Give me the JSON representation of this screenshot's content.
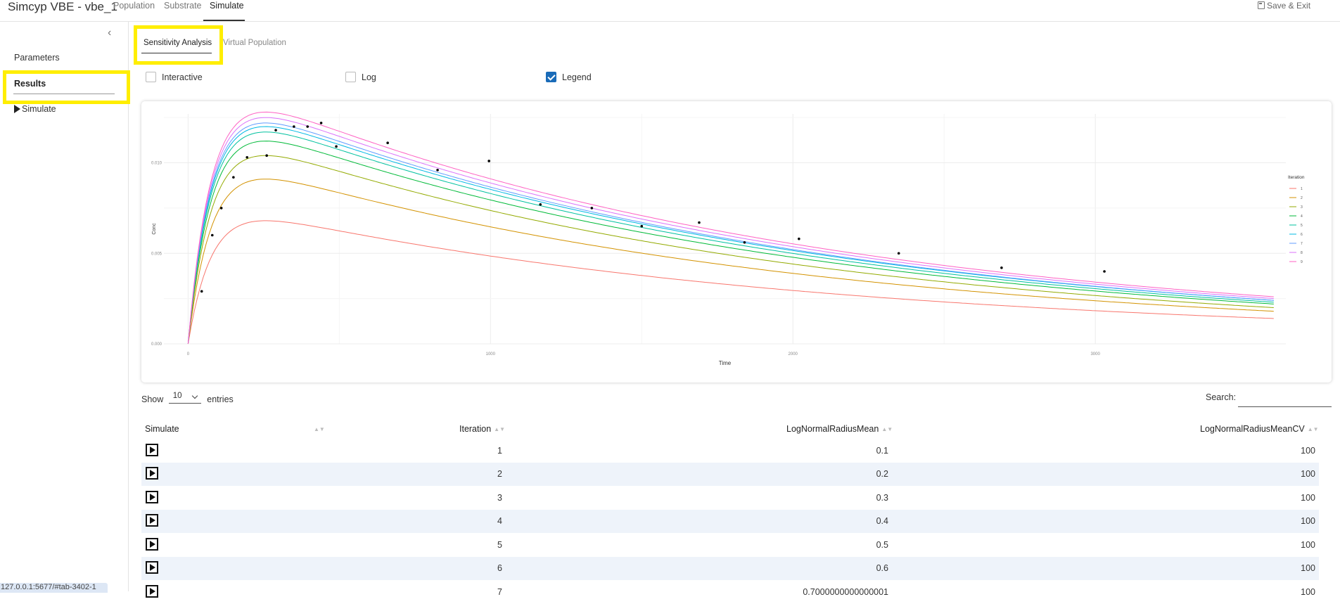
{
  "app": {
    "title": "Simcyp VBE - vbe_1",
    "save_exit": "Save & Exit"
  },
  "nav": {
    "tabs": [
      "Population",
      "Substrate",
      "Simulate"
    ],
    "active": "Simulate"
  },
  "sidebar": {
    "collapse_icon": "chevron-left-icon",
    "items": [
      "Parameters",
      "Results",
      "Simulate"
    ],
    "active": "Results"
  },
  "url_status": "127.0.0.1:5677/#tab-3402-1",
  "subtabs": [
    "Sensitivity Analysis",
    "Virtual Population"
  ],
  "options": {
    "interactive": {
      "label": "Interactive",
      "checked": false
    },
    "log": {
      "label": "Log",
      "checked": false
    },
    "legend": {
      "label": "Legend",
      "checked": true
    }
  },
  "chart_data": {
    "type": "line",
    "title": "",
    "xlabel": "Time",
    "ylabel": "Conc",
    "xlim": [
      -80,
      3630
    ],
    "ylim": [
      0,
      0.0127
    ],
    "x_ticks": [
      0,
      1000,
      2000,
      3000
    ],
    "x_tick_labels": [
      "0",
      "1000",
      "2000",
      "3000"
    ],
    "y_ticks": [
      0.0,
      0.005,
      0.01
    ],
    "y_tick_labels": [
      "0.000",
      "0.005",
      "0.010"
    ],
    "grid": true,
    "legend_title": "Iteration",
    "legend_position": "right",
    "series": [
      {
        "name": "1",
        "color": "#f8766d",
        "peak_time": 290,
        "peak": 0.0068,
        "end": 0.0014
      },
      {
        "name": "2",
        "color": "#d39200",
        "peak_time": 290,
        "peak": 0.0091,
        "end": 0.0018
      },
      {
        "name": "3",
        "color": "#93aa00",
        "peak_time": 290,
        "peak": 0.0104,
        "end": 0.002
      },
      {
        "name": "4",
        "color": "#00ba38",
        "peak_time": 290,
        "peak": 0.0112,
        "end": 0.0022
      },
      {
        "name": "5",
        "color": "#00c19f",
        "peak_time": 290,
        "peak": 0.0117,
        "end": 0.0023
      },
      {
        "name": "6",
        "color": "#00b9e3",
        "peak_time": 290,
        "peak": 0.012,
        "end": 0.0024
      },
      {
        "name": "7",
        "color": "#619cff",
        "peak_time": 290,
        "peak": 0.0122,
        "end": 0.0024
      },
      {
        "name": "8",
        "color": "#db72fb",
        "peak_time": 290,
        "peak": 0.0125,
        "end": 0.0025
      },
      {
        "name": "9",
        "color": "#ff61c3",
        "peak_time": 290,
        "peak": 0.0128,
        "end": 0.0026
      }
    ],
    "observed": {
      "x": [
        45,
        80,
        110,
        150,
        195,
        260,
        290,
        350,
        395,
        440,
        490,
        660,
        825,
        995,
        1165,
        1335,
        1500,
        1690,
        1840,
        2020,
        2350,
        2690,
        3030
      ],
      "y": [
        0.0029,
        0.006,
        0.0075,
        0.0092,
        0.0103,
        0.0104,
        0.0118,
        0.012,
        0.012,
        0.0122,
        0.0109,
        0.0111,
        0.0096,
        0.0101,
        0.0077,
        0.0075,
        0.0065,
        0.0067,
        0.0056,
        0.0058,
        0.005,
        0.0042,
        0.004
      ]
    }
  },
  "table": {
    "show_label": "Show",
    "entries_label": "entries",
    "page_length": "10",
    "search_label": "Search:",
    "search_value": "",
    "columns": [
      "Simulate",
      "Iteration",
      "LogNormalRadiusMean",
      "LogNormalRadiusMeanCV"
    ],
    "rows": [
      {
        "iteration": "1",
        "mean": "0.1",
        "cv": "100"
      },
      {
        "iteration": "2",
        "mean": "0.2",
        "cv": "100"
      },
      {
        "iteration": "3",
        "mean": "0.3",
        "cv": "100"
      },
      {
        "iteration": "4",
        "mean": "0.4",
        "cv": "100"
      },
      {
        "iteration": "5",
        "mean": "0.5",
        "cv": "100"
      },
      {
        "iteration": "6",
        "mean": "0.6",
        "cv": "100"
      },
      {
        "iteration": "7",
        "mean": "0.7000000000000001",
        "cv": "100"
      }
    ]
  }
}
